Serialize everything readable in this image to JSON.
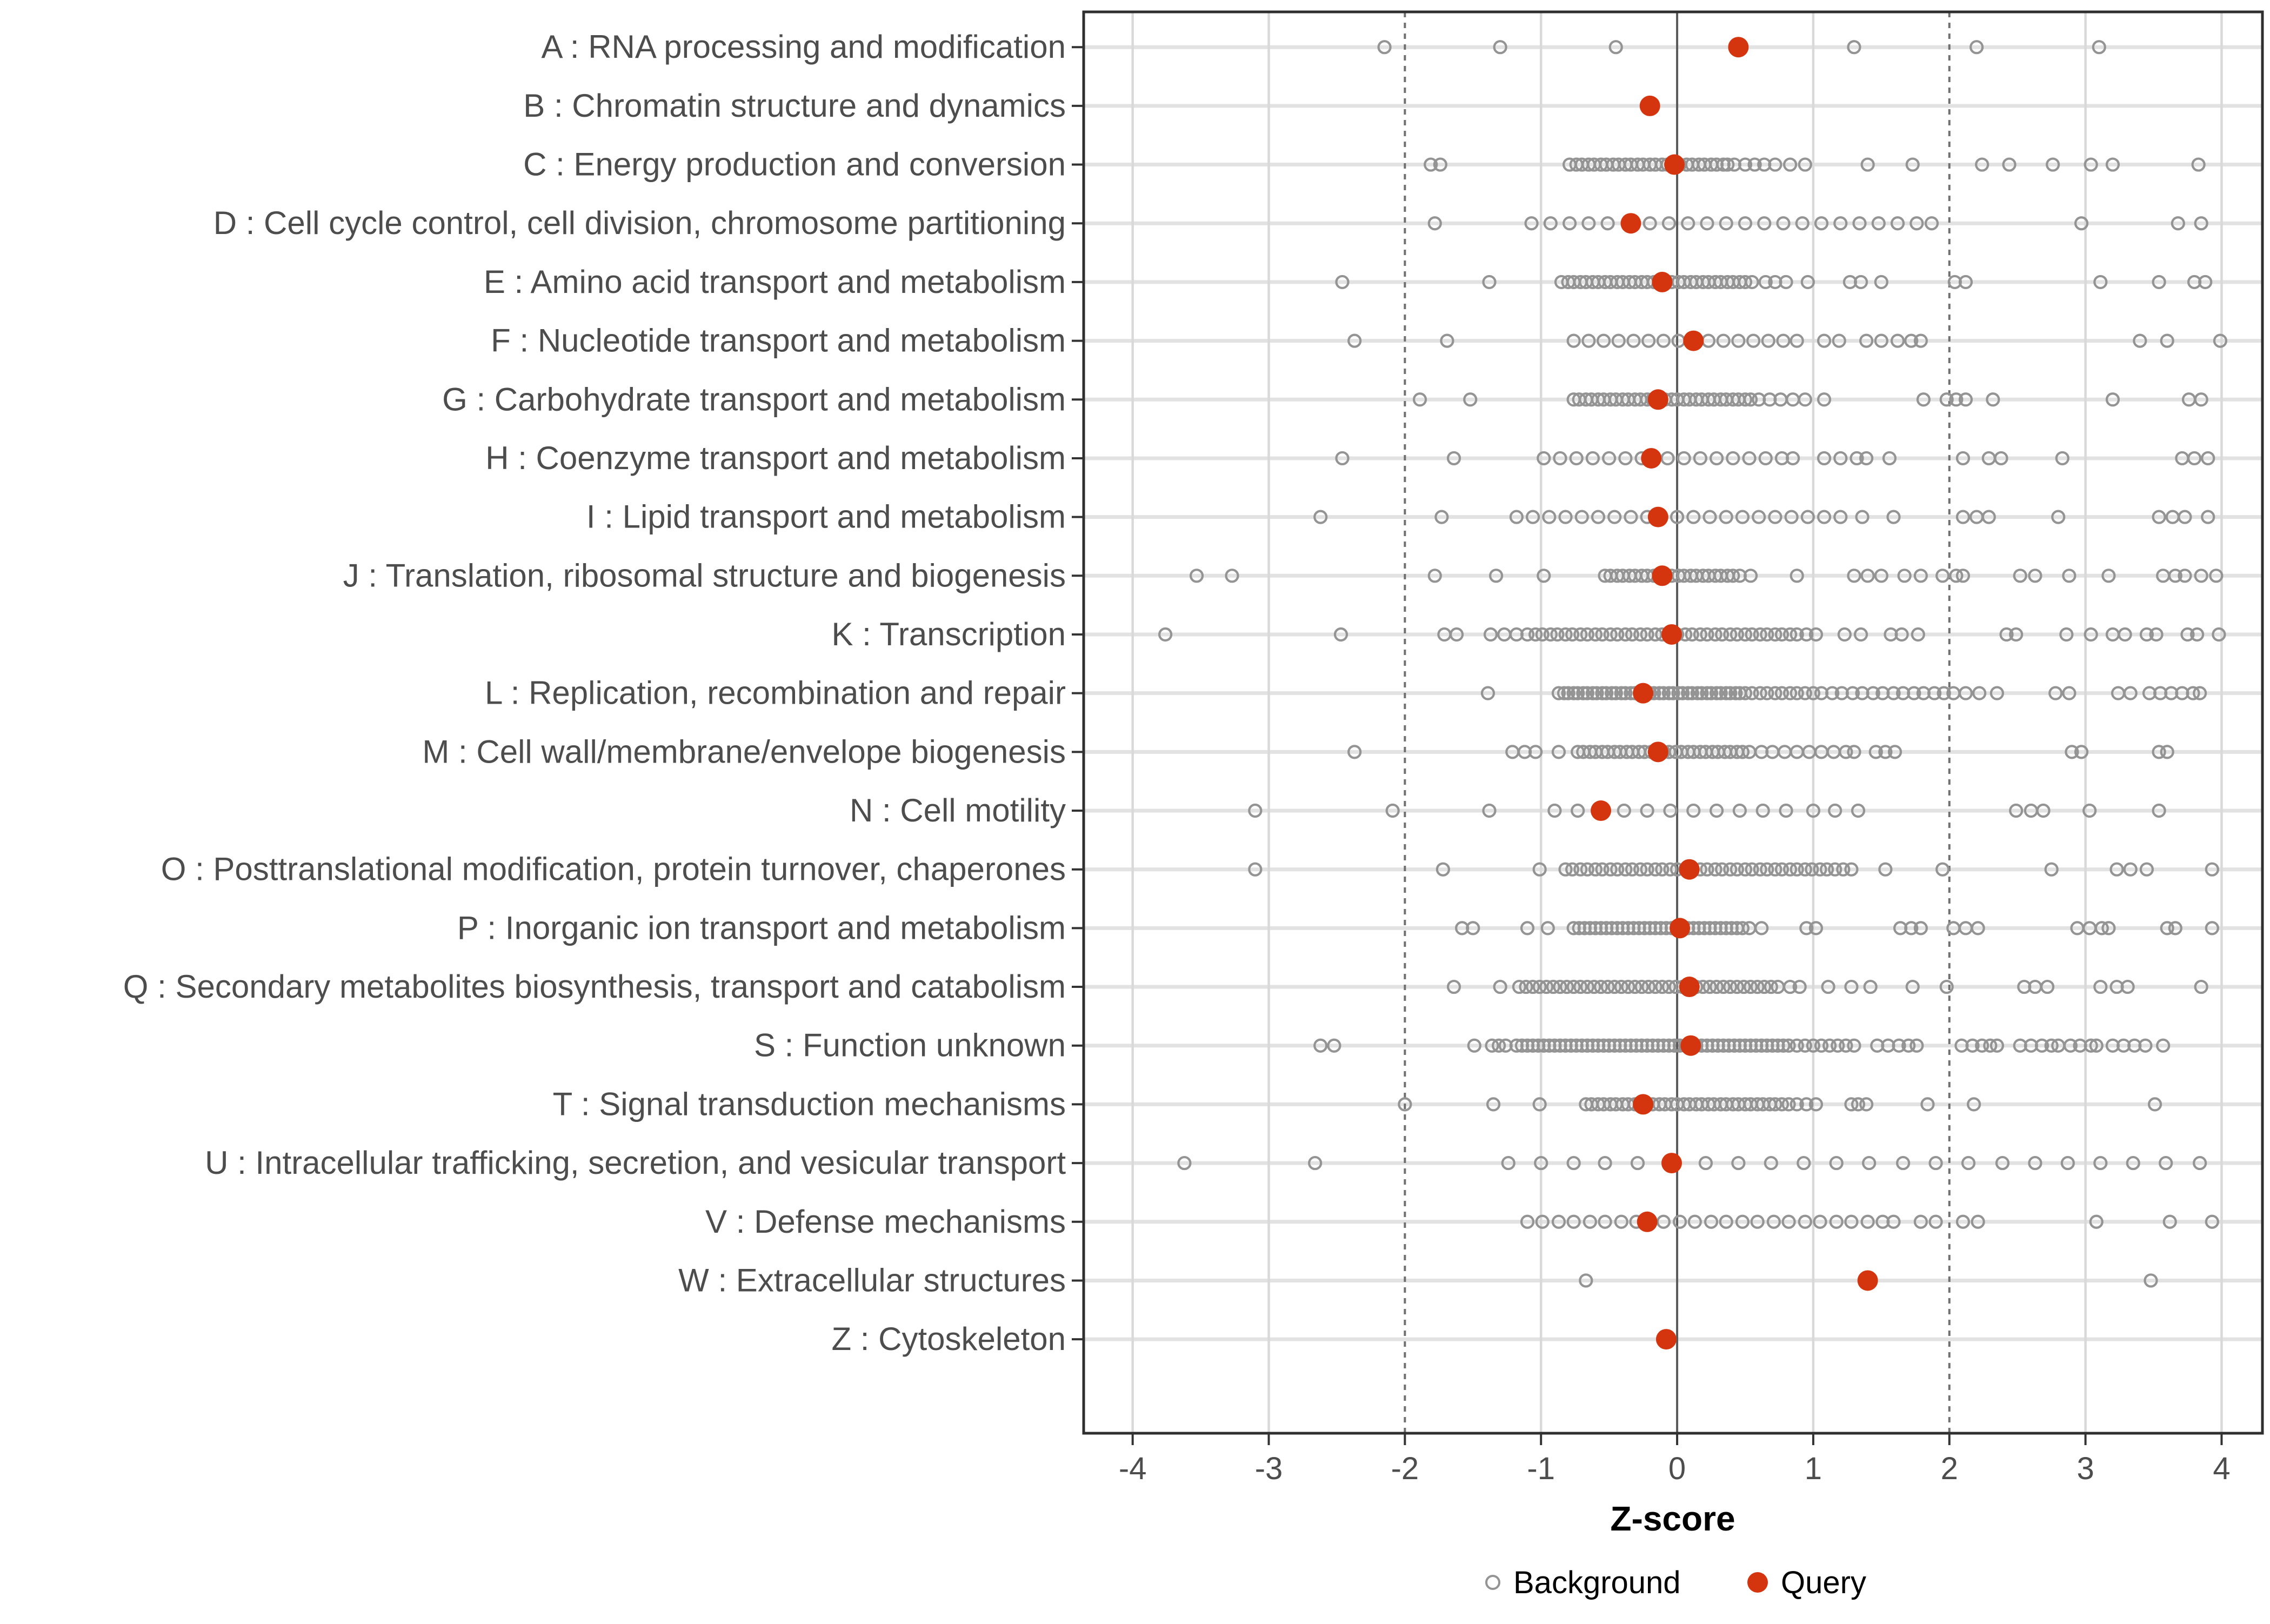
{
  "chart_data": {
    "type": "scatter",
    "title": "",
    "xlabel": "Z-score",
    "ylabel": "",
    "xlim": [
      -4.36,
      4.3
    ],
    "xticks": [
      "-4",
      "-3",
      "-2",
      "-1",
      "0",
      "1",
      "2",
      "3",
      "4"
    ],
    "xtick_values": [
      -4,
      -3,
      -2,
      -1,
      0,
      1,
      2,
      3,
      4
    ],
    "grid": true,
    "zero_line": 0,
    "dashed_lines": [
      -2,
      2
    ],
    "legend_position": "bottom",
    "legend": {
      "background_label": "Background",
      "query_label": "Query"
    },
    "colors": {
      "query": "#d4350e",
      "background_stroke": "#949494",
      "grid_vertical": "#d9d9d9",
      "row_line": "#e2e2e2",
      "zero_line": "#5a5a5a",
      "dashed_line": "#707070",
      "axis_text": "#4d4d4d",
      "tick_mark": "#333333",
      "panel_border": "#2f2f2f",
      "title_text": "#000000"
    },
    "categories": [
      {
        "label": "A : RNA processing and modification",
        "query": 0.45,
        "background": [
          -2.15,
          -1.3,
          -0.45,
          1.3,
          2.2,
          3.1
        ]
      },
      {
        "label": "B : Chromatin structure and dynamics",
        "query": -0.2,
        "background": []
      },
      {
        "label": "C : Energy production and conversion",
        "query": -0.02,
        "background": [
          -1.81,
          -1.74,
          -0.79,
          -0.74,
          -0.7,
          -0.65,
          -0.61,
          -0.56,
          -0.52,
          -0.47,
          -0.43,
          -0.38,
          -0.34,
          -0.29,
          -0.25,
          -0.2,
          -0.16,
          -0.11,
          -0.07,
          0.02,
          0.07,
          0.11,
          0.16,
          0.2,
          0.25,
          0.29,
          0.34,
          0.37,
          0.42,
          0.5,
          0.57,
          0.64,
          0.72,
          0.83,
          0.94,
          1.4,
          1.73,
          2.24,
          2.44,
          2.76,
          3.04,
          3.2,
          3.83
        ]
      },
      {
        "label": "D : Cell cycle control, cell division, chromosome partitioning",
        "query": -0.34,
        "background": [
          -1.78,
          -1.07,
          -0.93,
          -0.79,
          -0.65,
          -0.51,
          -0.2,
          -0.06,
          0.08,
          0.22,
          0.36,
          0.5,
          0.64,
          0.78,
          0.92,
          1.06,
          1.2,
          1.34,
          1.48,
          1.62,
          1.76,
          1.87,
          2.97,
          3.68,
          3.85
        ]
      },
      {
        "label": "E : Amino acid transport and metabolism",
        "query": -0.11,
        "background": [
          -2.46,
          -1.38,
          -0.85,
          -0.8,
          -0.76,
          -0.71,
          -0.67,
          -0.62,
          -0.58,
          -0.53,
          -0.49,
          -0.44,
          -0.4,
          -0.35,
          -0.31,
          -0.26,
          -0.22,
          -0.17,
          -0.13,
          -0.08,
          -0.04,
          0.01,
          0.05,
          0.1,
          0.14,
          0.19,
          0.23,
          0.28,
          0.32,
          0.37,
          0.41,
          0.46,
          0.5,
          0.55,
          0.65,
          0.72,
          0.8,
          0.96,
          1.27,
          1.35,
          1.5,
          2.04,
          2.12,
          3.11,
          3.54,
          3.8,
          3.88
        ]
      },
      {
        "label": "F : Nucleotide transport and metabolism",
        "query": 0.12,
        "background": [
          -2.37,
          -1.69,
          -0.76,
          -0.65,
          -0.54,
          -0.43,
          -0.32,
          -0.21,
          -0.1,
          0.01,
          0.23,
          0.34,
          0.45,
          0.56,
          0.67,
          0.78,
          0.88,
          1.08,
          1.19,
          1.39,
          1.5,
          1.62,
          1.72,
          1.79,
          3.4,
          3.6,
          3.99
        ]
      },
      {
        "label": "G : Carbohydrate transport and metabolism",
        "query": -0.14,
        "background": [
          -1.89,
          -1.52,
          -0.76,
          -0.72,
          -0.67,
          -0.63,
          -0.58,
          -0.54,
          -0.49,
          -0.45,
          -0.4,
          -0.36,
          -0.31,
          -0.27,
          -0.22,
          -0.18,
          -0.13,
          -0.09,
          -0.04,
          0.0,
          0.05,
          0.09,
          0.14,
          0.18,
          0.23,
          0.27,
          0.32,
          0.36,
          0.41,
          0.45,
          0.5,
          0.54,
          0.6,
          0.68,
          0.76,
          0.85,
          0.94,
          1.08,
          1.81,
          1.98,
          2.05,
          2.12,
          2.32,
          3.2,
          3.76,
          3.85
        ]
      },
      {
        "label": "H : Coenzyme transport and metabolism",
        "query": -0.19,
        "background": [
          -2.46,
          -1.64,
          -0.98,
          -0.86,
          -0.74,
          -0.62,
          -0.5,
          -0.38,
          -0.26,
          -0.07,
          0.05,
          0.17,
          0.29,
          0.41,
          0.53,
          0.65,
          0.77,
          0.85,
          1.08,
          1.2,
          1.32,
          1.39,
          1.56,
          2.1,
          2.29,
          2.38,
          2.83,
          3.71,
          3.8,
          3.9
        ]
      },
      {
        "label": "I : Lipid transport and metabolism",
        "query": -0.14,
        "background": [
          -2.62,
          -1.73,
          -1.18,
          -1.06,
          -0.94,
          -0.82,
          -0.7,
          -0.58,
          -0.46,
          -0.34,
          -0.22,
          0.0,
          0.12,
          0.24,
          0.36,
          0.48,
          0.6,
          0.72,
          0.84,
          0.96,
          1.08,
          1.2,
          1.36,
          1.59,
          2.1,
          2.2,
          2.29,
          2.8,
          3.54,
          3.64,
          3.73,
          3.9
        ]
      },
      {
        "label": "J : Translation, ribosomal structure and biogenesis",
        "query": -0.11,
        "background": [
          -3.53,
          -3.27,
          -1.78,
          -1.33,
          -0.98,
          -0.53,
          -0.49,
          -0.44,
          -0.4,
          -0.35,
          -0.31,
          -0.26,
          -0.22,
          -0.17,
          -0.13,
          -0.08,
          -0.04,
          0.01,
          0.05,
          0.1,
          0.14,
          0.19,
          0.23,
          0.28,
          0.32,
          0.37,
          0.41,
          0.46,
          0.54,
          0.88,
          1.3,
          1.4,
          1.5,
          1.67,
          1.79,
          1.95,
          2.05,
          2.1,
          2.52,
          2.63,
          2.88,
          3.17,
          3.57,
          3.66,
          3.73,
          3.85,
          3.96
        ]
      },
      {
        "label": "K : Transcription",
        "query": -0.04,
        "background": [
          -3.76,
          -2.47,
          -1.71,
          -1.62,
          -1.37,
          -1.27,
          -1.18,
          -1.1,
          -1.04,
          -0.99,
          -0.93,
          -0.88,
          -0.82,
          -0.77,
          -0.71,
          -0.66,
          -0.6,
          -0.55,
          -0.49,
          -0.44,
          -0.38,
          -0.33,
          -0.27,
          -0.22,
          -0.16,
          -0.11,
          -0.05,
          0.0,
          0.06,
          0.11,
          0.17,
          0.22,
          0.28,
          0.33,
          0.39,
          0.44,
          0.5,
          0.55,
          0.61,
          0.66,
          0.72,
          0.77,
          0.83,
          0.88,
          0.95,
          1.02,
          1.23,
          1.35,
          1.57,
          1.65,
          1.77,
          2.42,
          2.49,
          2.86,
          3.04,
          3.2,
          3.29,
          3.45,
          3.52,
          3.75,
          3.82,
          3.98
        ]
      },
      {
        "label": "L : Replication, recombination and repair",
        "query": -0.25,
        "background": [
          -1.39,
          -0.87,
          -0.83,
          -0.8,
          -0.76,
          -0.73,
          -0.69,
          -0.66,
          -0.62,
          -0.59,
          -0.55,
          -0.52,
          -0.48,
          -0.45,
          -0.41,
          -0.38,
          -0.34,
          -0.31,
          -0.27,
          -0.24,
          -0.2,
          -0.17,
          -0.13,
          -0.1,
          -0.06,
          -0.03,
          0.01,
          0.04,
          0.08,
          0.11,
          0.15,
          0.18,
          0.22,
          0.25,
          0.29,
          0.32,
          0.36,
          0.39,
          0.43,
          0.46,
          0.5,
          0.55,
          0.61,
          0.66,
          0.72,
          0.77,
          0.83,
          0.88,
          0.94,
          1.0,
          1.06,
          1.14,
          1.21,
          1.29,
          1.36,
          1.44,
          1.51,
          1.59,
          1.66,
          1.74,
          1.81,
          1.89,
          1.96,
          2.03,
          2.12,
          2.22,
          2.35,
          2.78,
          2.88,
          3.24,
          3.33,
          3.47,
          3.55,
          3.63,
          3.71,
          3.79,
          3.84
        ]
      },
      {
        "label": "M : Cell wall/membrane/envelope biogenesis",
        "query": -0.14,
        "background": [
          -2.37,
          -1.21,
          -1.12,
          -1.04,
          -0.87,
          -0.73,
          -0.69,
          -0.64,
          -0.6,
          -0.55,
          -0.51,
          -0.46,
          -0.42,
          -0.37,
          -0.33,
          -0.28,
          -0.24,
          -0.19,
          -0.15,
          -0.1,
          -0.06,
          -0.01,
          0.03,
          0.08,
          0.12,
          0.17,
          0.21,
          0.26,
          0.3,
          0.35,
          0.39,
          0.44,
          0.48,
          0.53,
          0.62,
          0.7,
          0.79,
          0.88,
          0.97,
          1.06,
          1.15,
          1.24,
          1.3,
          1.46,
          1.53,
          1.6,
          2.9,
          2.97,
          3.54,
          3.6
        ]
      },
      {
        "label": "N : Cell motility",
        "query": -0.56,
        "background": [
          -3.1,
          -2.09,
          -1.38,
          -0.9,
          -0.73,
          -0.39,
          -0.22,
          -0.05,
          0.12,
          0.29,
          0.46,
          0.63,
          0.8,
          1.0,
          1.16,
          1.33,
          2.49,
          2.6,
          2.69,
          3.03,
          3.54
        ]
      },
      {
        "label": "O : Posttranslational modification, protein turnover, chaperones",
        "query": 0.09,
        "background": [
          -3.1,
          -1.72,
          -1.01,
          -0.82,
          -0.77,
          -0.71,
          -0.66,
          -0.6,
          -0.55,
          -0.49,
          -0.44,
          -0.38,
          -0.33,
          -0.27,
          -0.22,
          -0.16,
          -0.11,
          -0.05,
          0.0,
          0.06,
          0.11,
          0.17,
          0.22,
          0.28,
          0.33,
          0.39,
          0.44,
          0.5,
          0.55,
          0.61,
          0.66,
          0.72,
          0.77,
          0.83,
          0.88,
          0.94,
          0.99,
          1.05,
          1.1,
          1.16,
          1.22,
          1.28,
          1.53,
          1.95,
          2.75,
          3.23,
          3.33,
          3.45,
          3.93
        ]
      },
      {
        "label": "P : Inorganic ion transport and metabolism",
        "query": 0.02,
        "background": [
          -1.58,
          -1.5,
          -1.1,
          -0.95,
          -0.76,
          -0.72,
          -0.68,
          -0.64,
          -0.6,
          -0.56,
          -0.52,
          -0.48,
          -0.44,
          -0.4,
          -0.36,
          -0.32,
          -0.28,
          -0.24,
          -0.2,
          -0.16,
          -0.12,
          -0.08,
          -0.04,
          0.04,
          0.08,
          0.12,
          0.16,
          0.2,
          0.24,
          0.28,
          0.32,
          0.36,
          0.4,
          0.44,
          0.48,
          0.53,
          0.62,
          0.95,
          1.02,
          1.64,
          1.72,
          1.79,
          2.03,
          2.12,
          2.21,
          2.94,
          3.03,
          3.12,
          3.17,
          3.6,
          3.66,
          3.93
        ]
      },
      {
        "label": "Q : Secondary metabolites biosynthesis, transport and catabolism",
        "query": 0.09,
        "background": [
          -1.64,
          -1.3,
          -1.16,
          -1.11,
          -1.06,
          -1.01,
          -0.96,
          -0.91,
          -0.86,
          -0.81,
          -0.76,
          -0.71,
          -0.66,
          -0.61,
          -0.56,
          -0.51,
          -0.46,
          -0.41,
          -0.36,
          -0.31,
          -0.26,
          -0.21,
          -0.16,
          -0.11,
          -0.06,
          -0.01,
          0.04,
          0.14,
          0.19,
          0.24,
          0.29,
          0.34,
          0.39,
          0.44,
          0.49,
          0.54,
          0.59,
          0.64,
          0.69,
          0.74,
          0.83,
          0.9,
          1.11,
          1.28,
          1.42,
          1.73,
          1.98,
          2.55,
          2.63,
          2.72,
          3.11,
          3.23,
          3.31,
          3.85
        ]
      },
      {
        "label": "S : Function unknown",
        "query": 0.1,
        "background": [
          -2.62,
          -2.52,
          -1.49,
          -1.36,
          -1.31,
          -1.26,
          -1.18,
          -1.14,
          -1.1,
          -1.06,
          -1.02,
          -0.98,
          -0.94,
          -0.9,
          -0.86,
          -0.82,
          -0.78,
          -0.74,
          -0.7,
          -0.66,
          -0.62,
          -0.58,
          -0.54,
          -0.5,
          -0.46,
          -0.42,
          -0.38,
          -0.34,
          -0.3,
          -0.26,
          -0.22,
          -0.18,
          -0.14,
          -0.1,
          -0.06,
          -0.02,
          0.02,
          0.06,
          0.14,
          0.18,
          0.22,
          0.26,
          0.3,
          0.34,
          0.38,
          0.42,
          0.46,
          0.5,
          0.54,
          0.58,
          0.62,
          0.66,
          0.7,
          0.74,
          0.78,
          0.82,
          0.88,
          0.94,
          1.0,
          1.06,
          1.12,
          1.18,
          1.24,
          1.3,
          1.47,
          1.55,
          1.63,
          1.7,
          1.76,
          2.09,
          2.17,
          2.24,
          2.3,
          2.35,
          2.52,
          2.6,
          2.68,
          2.75,
          2.8,
          2.89,
          2.96,
          3.04,
          3.08,
          3.2,
          3.28,
          3.36,
          3.44,
          3.57
        ]
      },
      {
        "label": "T : Signal transduction mechanisms",
        "query": -0.25,
        "background": [
          -2.0,
          -1.35,
          -1.01,
          -0.67,
          -0.63,
          -0.58,
          -0.54,
          -0.49,
          -0.45,
          -0.4,
          -0.36,
          -0.31,
          -0.27,
          -0.22,
          -0.18,
          -0.13,
          -0.09,
          -0.04,
          0.0,
          0.05,
          0.09,
          0.14,
          0.18,
          0.23,
          0.27,
          0.32,
          0.36,
          0.41,
          0.45,
          0.5,
          0.54,
          0.59,
          0.63,
          0.68,
          0.72,
          0.77,
          0.82,
          0.88,
          0.95,
          1.02,
          1.28,
          1.33,
          1.39,
          1.84,
          2.18,
          3.51
        ]
      },
      {
        "label": "U : Intracellular trafficking, secretion, and vesicular transport",
        "query": -0.04,
        "background": [
          -3.62,
          -2.66,
          -1.24,
          -1.0,
          -0.76,
          -0.53,
          -0.29,
          0.21,
          0.45,
          0.69,
          0.93,
          1.17,
          1.41,
          1.66,
          1.9,
          2.14,
          2.39,
          2.63,
          2.87,
          3.11,
          3.35,
          3.59,
          3.84
        ]
      },
      {
        "label": "V : Defense mechanisms",
        "query": -0.22,
        "background": [
          -1.1,
          -0.99,
          -0.87,
          -0.76,
          -0.64,
          -0.53,
          -0.41,
          -0.3,
          -0.1,
          0.02,
          0.13,
          0.25,
          0.36,
          0.48,
          0.59,
          0.71,
          0.82,
          0.94,
          1.05,
          1.17,
          1.28,
          1.4,
          1.51,
          1.59,
          1.79,
          1.9,
          2.1,
          2.21,
          3.08,
          3.62,
          3.93
        ]
      },
      {
        "label": "W : Extracellular structures",
        "query": 1.4,
        "background": [
          -0.67,
          3.48
        ]
      },
      {
        "label": "Z : Cytoskeleton",
        "query": -0.08,
        "background": []
      }
    ]
  }
}
